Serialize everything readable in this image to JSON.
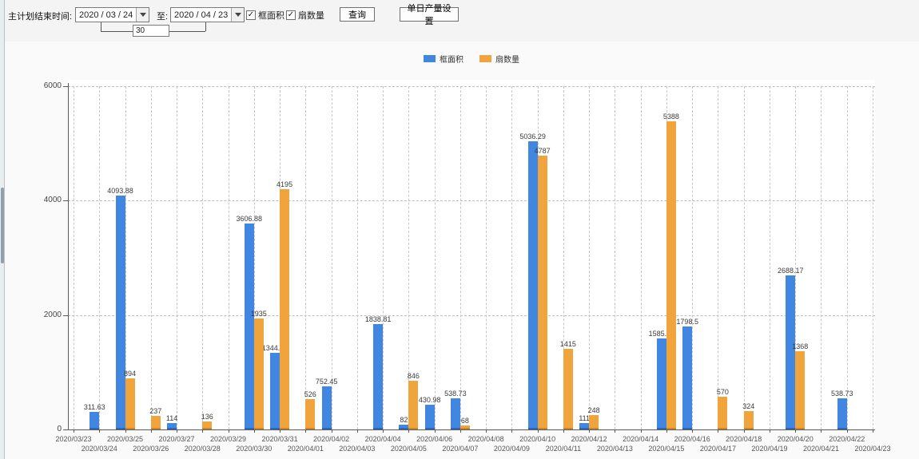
{
  "toolbar": {
    "end_time_label": "主计划结束时间:",
    "date_from": "2020 / 03 / 24",
    "to_label": "至:",
    "date_to": "2020 / 04 / 23",
    "days_between": "30",
    "checkbox_area_label": "框面积",
    "checkbox_count_label": "扇数量",
    "checkbox_glyph": "✓",
    "query_button": "查询",
    "daily_output_button": "单日产量设置"
  },
  "legend": {
    "items": [
      {
        "label": "框面积",
        "color": "#4186e0"
      },
      {
        "label": "扇数量",
        "color": "#f2a43c"
      }
    ]
  },
  "chart_data": {
    "type": "bar",
    "title": "",
    "xlabel": "",
    "ylabel": "",
    "ylim": [
      0,
      6000
    ],
    "yticks": [
      0,
      2000,
      4000,
      6000
    ],
    "grid": true,
    "legend_position": "top",
    "categories": [
      "2020/03/23",
      "2020/03/24",
      "2020/03/25",
      "2020/03/26",
      "2020/03/27",
      "2020/03/28",
      "2020/03/29",
      "2020/03/30",
      "2020/03/31",
      "2020/04/01",
      "2020/04/02",
      "2020/04/03",
      "2020/04/04",
      "2020/04/05",
      "2020/04/06",
      "2020/04/07",
      "2020/04/08",
      "2020/04/09",
      "2020/04/10",
      "2020/04/11",
      "2020/04/12",
      "2020/04/13",
      "2020/04/14",
      "2020/04/15",
      "2020/04/16",
      "2020/04/17",
      "2020/04/18",
      "2020/04/19",
      "2020/04/20",
      "2020/04/21",
      "2020/04/22",
      "2020/04/23"
    ],
    "series": [
      {
        "name": "框面积",
        "color": "#4186e0",
        "edge_color": "#2f67b8",
        "values": [
          null,
          311.63,
          4093.88,
          null,
          114,
          null,
          null,
          3606.88,
          1344.95,
          null,
          752.45,
          null,
          1838.81,
          82,
          430.98,
          538.73,
          null,
          null,
          5036.29,
          null,
          111,
          null,
          null,
          1585.96,
          1798.5,
          null,
          null,
          null,
          2688.17,
          null,
          538.73,
          null
        ]
      },
      {
        "name": "扇数量",
        "color": "#f2a43c",
        "edge_color": "#c9862a",
        "values": [
          null,
          null,
          894,
          237,
          null,
          136,
          null,
          1935,
          4195,
          526,
          null,
          null,
          null,
          846,
          null,
          68,
          null,
          null,
          4787,
          1415,
          248,
          null,
          null,
          5388,
          null,
          570,
          324,
          null,
          1368,
          null,
          null,
          null
        ]
      }
    ]
  }
}
